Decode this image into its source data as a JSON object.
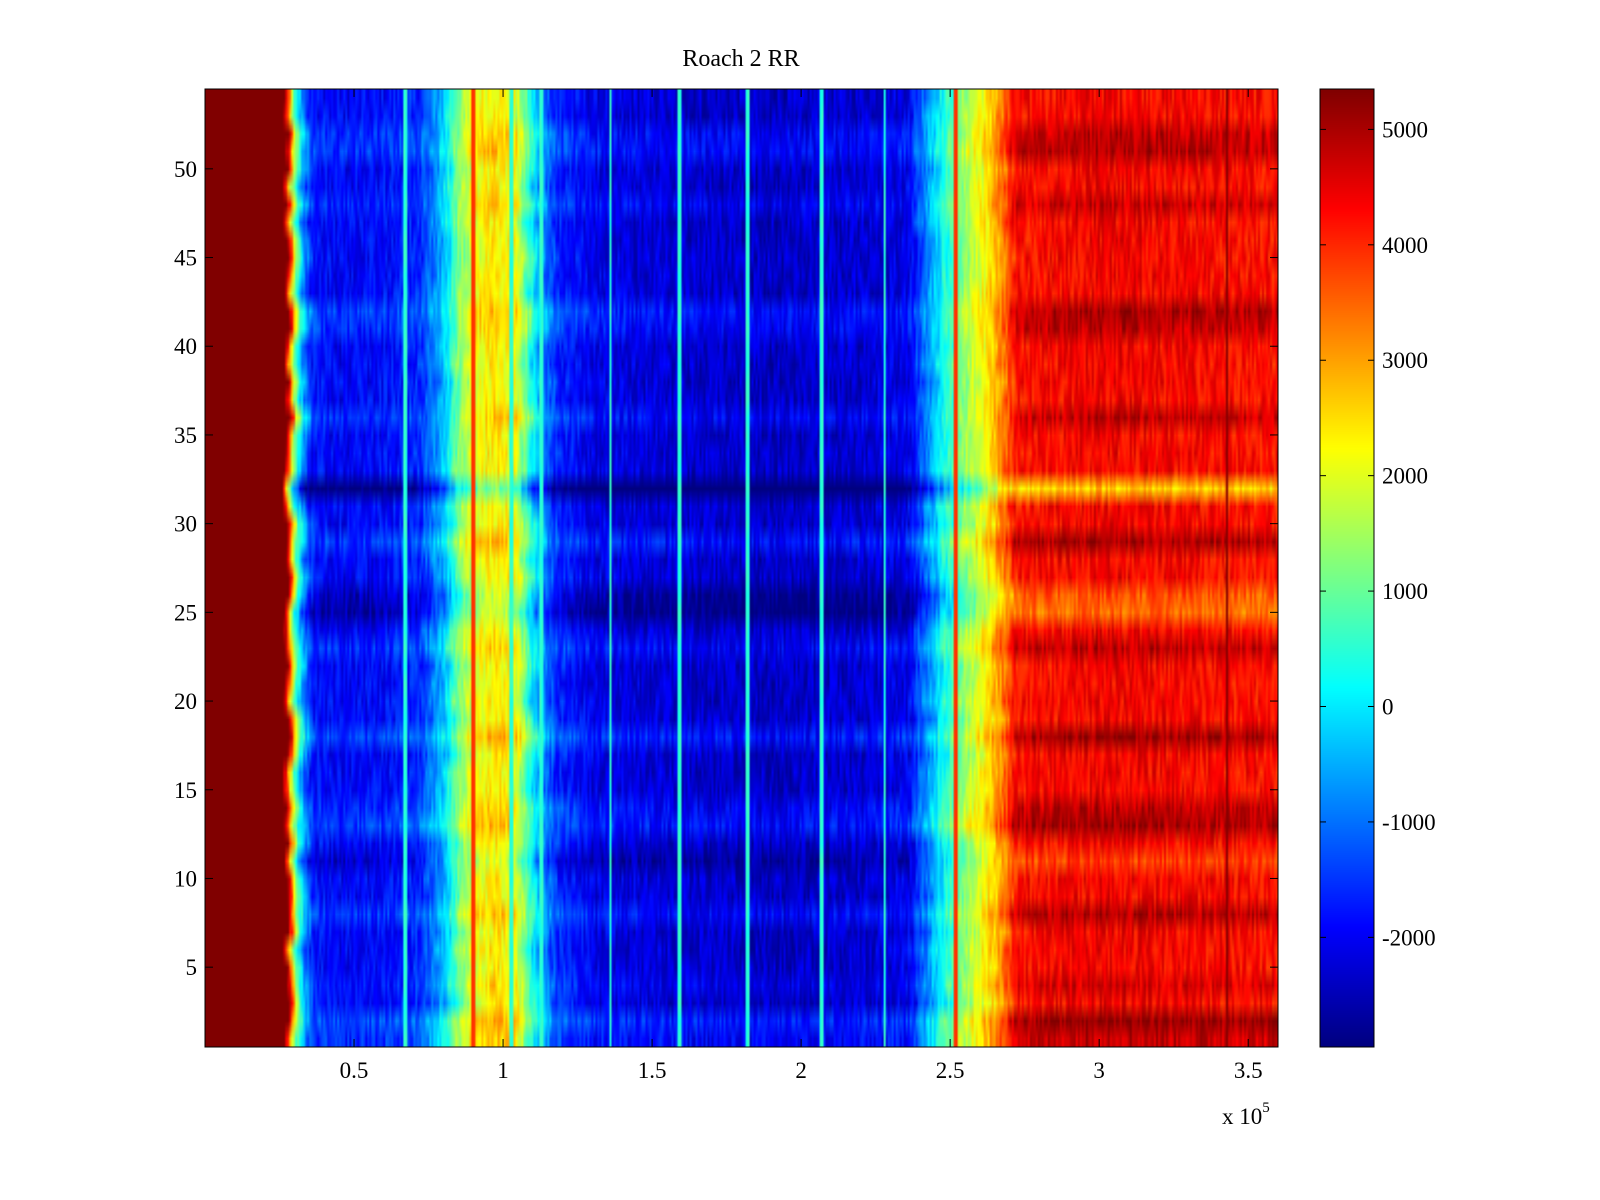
{
  "chart_data": {
    "type": "heatmap",
    "title": "Roach 2 RR",
    "xlabel": "",
    "ylabel": "",
    "x_exponent_label": "x 10",
    "x_exponent_power": "5",
    "xlim": [
      0,
      3.6
    ],
    "ylim": [
      0.5,
      54.5
    ],
    "x_ticks": [
      0.5,
      1,
      1.5,
      2,
      2.5,
      3,
      3.5
    ],
    "x_tick_labels": [
      "0.5",
      "1",
      "1.5",
      "2",
      "2.5",
      "3",
      "3.5"
    ],
    "y_ticks": [
      5,
      10,
      15,
      20,
      25,
      30,
      35,
      40,
      45,
      50
    ],
    "y_tick_labels": [
      "5",
      "10",
      "15",
      "20",
      "25",
      "30",
      "35",
      "40",
      "45",
      "50"
    ],
    "rows": 54,
    "colormap": "jet",
    "color_range": [
      -2950,
      5350
    ],
    "colorbar_ticks": [
      -2000,
      -1000,
      0,
      1000,
      2000,
      3000,
      4000,
      5000
    ],
    "colorbar_tick_labels": [
      "-2000",
      "-1000",
      "0",
      "1000",
      "2000",
      "3000",
      "4000",
      "5000"
    ],
    "column_profile": [
      {
        "x": 0.0,
        "value": 5350
      },
      {
        "x": 0.27,
        "value": 5350
      },
      {
        "x": 0.285,
        "value": 3500
      },
      {
        "x": 0.3,
        "value": 1200
      },
      {
        "x": 0.33,
        "value": -700
      },
      {
        "x": 0.36,
        "value": -1800
      },
      {
        "x": 0.45,
        "value": -2000
      },
      {
        "x": 0.6,
        "value": -1900
      },
      {
        "x": 0.72,
        "value": -1600
      },
      {
        "x": 0.8,
        "value": -400
      },
      {
        "x": 0.85,
        "value": 1100
      },
      {
        "x": 0.9,
        "value": 2000
      },
      {
        "x": 0.97,
        "value": 2400
      },
      {
        "x": 1.04,
        "value": 2100
      },
      {
        "x": 1.08,
        "value": 800
      },
      {
        "x": 1.12,
        "value": -600
      },
      {
        "x": 1.18,
        "value": -1600
      },
      {
        "x": 1.3,
        "value": -2100
      },
      {
        "x": 1.6,
        "value": -2300
      },
      {
        "x": 1.9,
        "value": -2400
      },
      {
        "x": 2.2,
        "value": -2300
      },
      {
        "x": 2.36,
        "value": -2100
      },
      {
        "x": 2.42,
        "value": -900
      },
      {
        "x": 2.48,
        "value": 300
      },
      {
        "x": 2.56,
        "value": 1500
      },
      {
        "x": 2.63,
        "value": 2400
      },
      {
        "x": 2.68,
        "value": 3300
      },
      {
        "x": 2.72,
        "value": 4200
      },
      {
        "x": 3.0,
        "value": 4400
      },
      {
        "x": 3.3,
        "value": 4300
      },
      {
        "x": 3.6,
        "value": 4200
      }
    ],
    "cyan_streak_x": [
      0.67,
      1.03,
      1.13,
      1.36,
      1.59,
      1.82,
      2.07,
      2.28
    ],
    "dark_streak_x": [
      0.9,
      2.52,
      3.43
    ],
    "row_offsets": [
      {
        "row": 1,
        "value": 500
      },
      {
        "row": 2,
        "value": 900
      },
      {
        "row": 4,
        "value": 300
      },
      {
        "row": 8,
        "value": 600
      },
      {
        "row": 11,
        "value": -500
      },
      {
        "row": 13,
        "value": 700
      },
      {
        "row": 14,
        "value": 500
      },
      {
        "row": 18,
        "value": 800
      },
      {
        "row": 23,
        "value": 500
      },
      {
        "row": 25,
        "value": -900
      },
      {
        "row": 26,
        "value": -700
      },
      {
        "row": 29,
        "value": 700
      },
      {
        "row": 32,
        "value": -1700
      },
      {
        "row": 36,
        "value": 500
      },
      {
        "row": 41,
        "value": 500
      },
      {
        "row": 42,
        "value": 700
      },
      {
        "row": 48,
        "value": 400
      },
      {
        "row": 51,
        "value": 600
      },
      {
        "row": 52,
        "value": 500
      }
    ]
  }
}
